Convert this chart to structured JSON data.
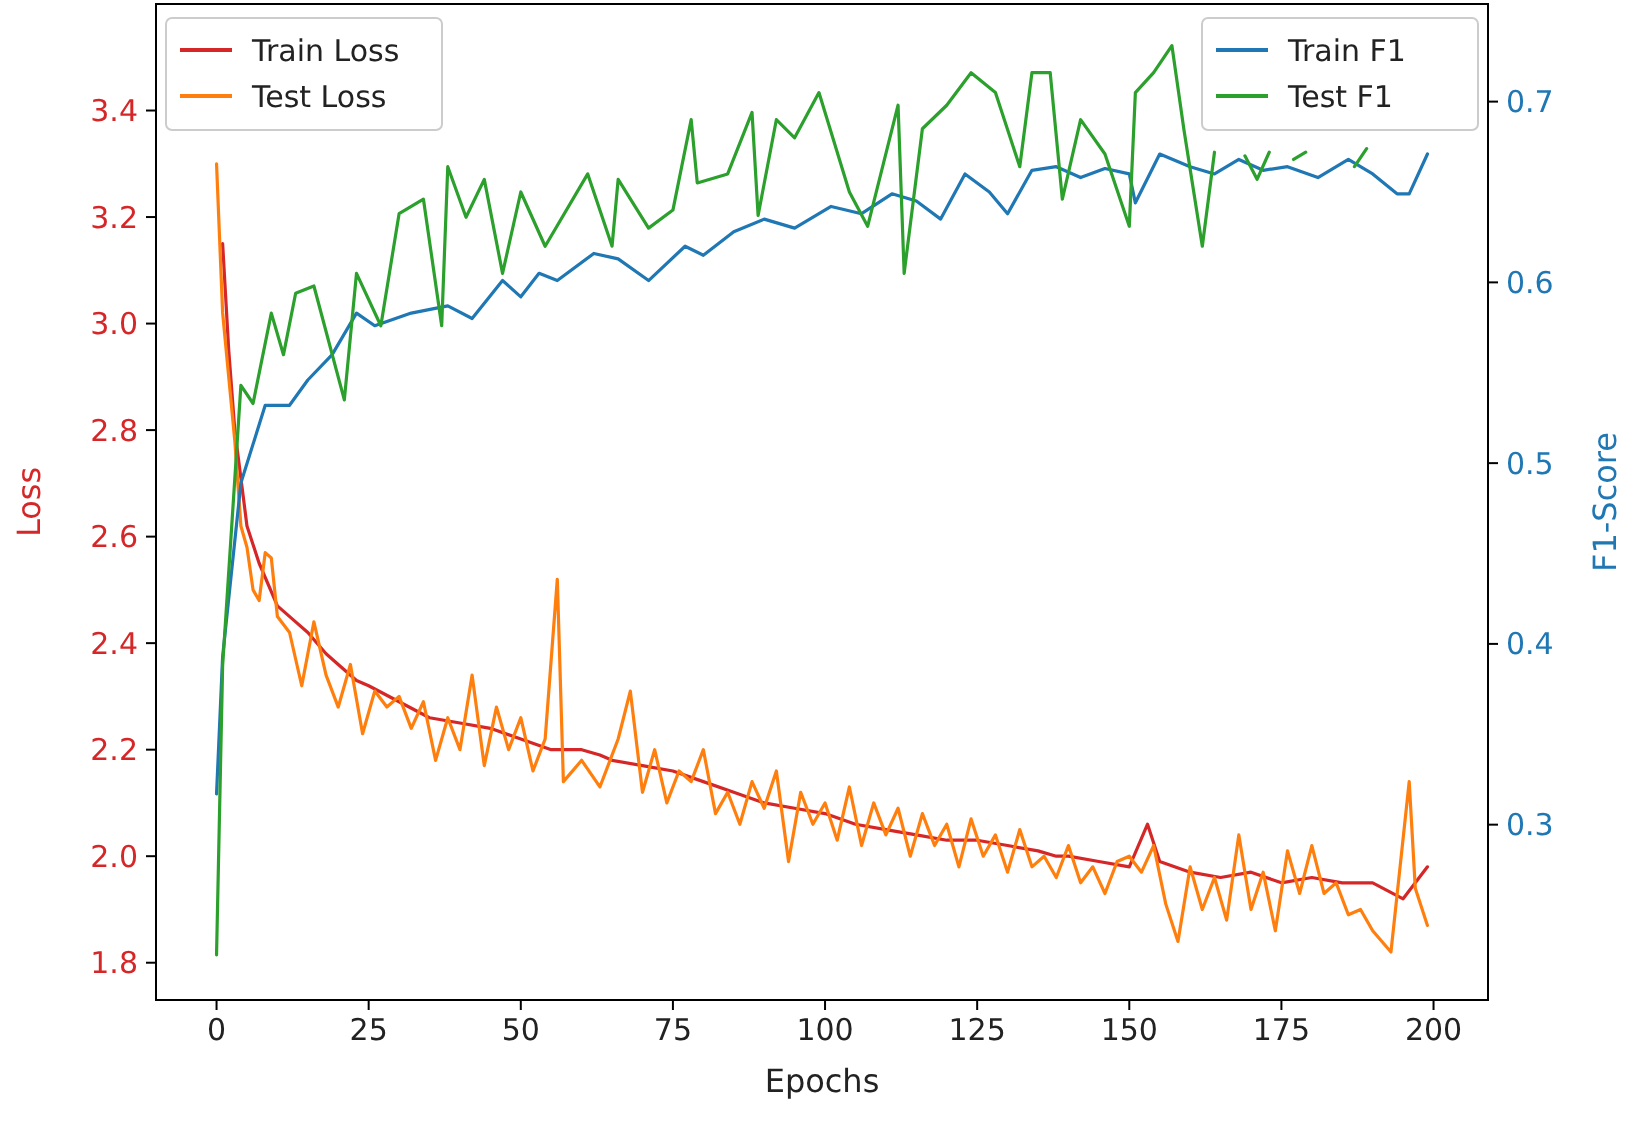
{
  "chart_data": {
    "type": "line",
    "xlabel": "Epochs",
    "ylabel": "Loss",
    "y2label": "F1-Score",
    "xlim": [
      -9.95,
      208.95
    ],
    "xticks": [
      0,
      25,
      50,
      75,
      100,
      125,
      150,
      175,
      200
    ],
    "ylim": [
      1.73,
      3.6
    ],
    "yticks": [
      1.8,
      {
        "value": 2.0,
        "label": "2.0"
      },
      2.2,
      2.4,
      2.6,
      2.8,
      {
        "value": 3.0,
        "label": "3.0"
      },
      3.2,
      3.4
    ],
    "y2lim": [
      0.203,
      0.754
    ],
    "y2ticks": [
      0.3,
      0.4,
      0.5,
      0.6,
      0.7
    ],
    "legend": "top left",
    "grid": false,
    "series": [
      {
        "name": "Train Loss",
        "color": "#d62728",
        "x": [
          1,
          2,
          3,
          5,
          7,
          10,
          13,
          15,
          18,
          20,
          23,
          25,
          30,
          35,
          40,
          45,
          50,
          55,
          60,
          63,
          65,
          70,
          75,
          80,
          85,
          90,
          95,
          100,
          105,
          110,
          115,
          120,
          125,
          130,
          135,
          138,
          140,
          145,
          150,
          153,
          155,
          160,
          165,
          170,
          175,
          180,
          185,
          190,
          195,
          199
        ],
        "values": [
          3.15,
          2.95,
          2.8,
          2.62,
          2.55,
          2.47,
          2.44,
          2.42,
          2.38,
          2.36,
          2.33,
          2.32,
          2.29,
          2.26,
          2.25,
          2.24,
          2.22,
          2.2,
          2.2,
          2.19,
          2.18,
          2.17,
          2.16,
          2.14,
          2.12,
          2.1,
          2.09,
          2.08,
          2.06,
          2.05,
          2.04,
          2.03,
          2.03,
          2.02,
          2.01,
          2.0,
          2.0,
          1.99,
          1.98,
          2.06,
          1.99,
          1.97,
          1.96,
          1.97,
          1.95,
          1.96,
          1.95,
          1.95,
          1.92,
          1.98
        ]
      },
      {
        "name": "Test Loss",
        "color": "#ff7f0e",
        "x": [
          0,
          1,
          2,
          3,
          4,
          5,
          6,
          7,
          8,
          9,
          10,
          12,
          14,
          16,
          18,
          20,
          22,
          24,
          26,
          28,
          30,
          32,
          34,
          36,
          38,
          40,
          42,
          44,
          46,
          48,
          50,
          52,
          54,
          56,
          57,
          60,
          63,
          66,
          68,
          70,
          72,
          74,
          76,
          78,
          80,
          82,
          84,
          86,
          88,
          90,
          92,
          94,
          96,
          98,
          100,
          102,
          104,
          106,
          108,
          110,
          112,
          114,
          116,
          118,
          120,
          122,
          124,
          126,
          128,
          130,
          132,
          134,
          136,
          138,
          140,
          142,
          144,
          146,
          148,
          150,
          152,
          154,
          156,
          158,
          160,
          162,
          164,
          166,
          168,
          170,
          172,
          174,
          176,
          178,
          180,
          182,
          184,
          186,
          188,
          190,
          193,
          196,
          197,
          199
        ],
        "values": [
          3.3,
          3.02,
          2.9,
          2.78,
          2.62,
          2.58,
          2.5,
          2.48,
          2.57,
          2.56,
          2.45,
          2.42,
          2.32,
          2.44,
          2.34,
          2.28,
          2.36,
          2.23,
          2.31,
          2.28,
          2.3,
          2.24,
          2.29,
          2.18,
          2.26,
          2.2,
          2.34,
          2.17,
          2.28,
          2.2,
          2.26,
          2.16,
          2.22,
          2.52,
          2.14,
          2.18,
          2.13,
          2.22,
          2.31,
          2.12,
          2.2,
          2.1,
          2.16,
          2.14,
          2.2,
          2.08,
          2.12,
          2.06,
          2.14,
          2.09,
          2.16,
          1.99,
          2.12,
          2.06,
          2.1,
          2.03,
          2.13,
          2.02,
          2.1,
          2.04,
          2.09,
          2.0,
          2.08,
          2.02,
          2.06,
          1.98,
          2.07,
          2.0,
          2.04,
          1.97,
          2.05,
          1.98,
          2.0,
          1.96,
          2.02,
          1.95,
          1.98,
          1.93,
          1.99,
          2.0,
          1.97,
          2.02,
          1.91,
          1.84,
          1.98,
          1.9,
          1.96,
          1.88,
          2.04,
          1.9,
          1.97,
          1.86,
          2.01,
          1.93,
          2.02,
          1.93,
          1.95,
          1.89,
          1.9,
          1.86,
          1.82,
          2.14,
          1.94,
          1.87
        ]
      },
      {
        "name": "Train F1",
        "color": "#1f77b4",
        "axis": "y2",
        "x": [
          0,
          1,
          4,
          8,
          12,
          15,
          19,
          23,
          26,
          32,
          38,
          42,
          47,
          50,
          53,
          56,
          62,
          66,
          71,
          77,
          80,
          85,
          90,
          95,
          101,
          106,
          111,
          115,
          119,
          123,
          127,
          130,
          134,
          138,
          142,
          146,
          150,
          151,
          155,
          160,
          164,
          168,
          172,
          176,
          181,
          186,
          190,
          194,
          196,
          199
        ],
        "values": [
          0.317,
          0.393,
          0.489,
          0.532,
          0.532,
          0.546,
          0.56,
          0.583,
          0.576,
          0.583,
          0.587,
          0.58,
          0.601,
          0.592,
          0.605,
          0.601,
          0.616,
          0.613,
          0.601,
          0.62,
          0.615,
          0.628,
          0.635,
          0.63,
          0.642,
          0.638,
          0.649,
          0.645,
          0.635,
          0.66,
          0.65,
          0.638,
          0.662,
          0.664,
          0.658,
          0.663,
          0.66,
          0.644,
          0.671,
          0.664,
          0.66,
          0.668,
          0.662,
          0.664,
          0.658,
          0.668,
          0.66,
          0.649,
          0.649,
          0.671
        ]
      },
      {
        "name": "Test F1",
        "color": "#2ca02c",
        "axis": "y2",
        "x": [
          0,
          1,
          4,
          6,
          9,
          11,
          13,
          16,
          21,
          23,
          27,
          30,
          34,
          37,
          38,
          41,
          44,
          47,
          50,
          54,
          61,
          65,
          66,
          71,
          75,
          78,
          79,
          84,
          88,
          89,
          92,
          95,
          99,
          104,
          107,
          112,
          113,
          116,
          120,
          124,
          128,
          132,
          134,
          137,
          139,
          142,
          146,
          150,
          151,
          154,
          157,
          159,
          162,
          164,
          166,
          169,
          171,
          173,
          175,
          177,
          179,
          185,
          187,
          189
        ],
        "values": [
          0.228,
          0.388,
          0.543,
          0.533,
          0.583,
          0.56,
          0.594,
          0.598,
          0.535,
          0.605,
          0.576,
          0.638,
          0.646,
          0.576,
          0.664,
          0.636,
          0.657,
          0.605,
          0.65,
          0.62,
          0.66,
          0.62,
          0.657,
          0.63,
          0.64,
          0.69,
          0.655,
          0.66,
          0.694,
          0.637,
          0.69,
          0.68,
          0.705,
          0.65,
          0.631,
          0.698,
          0.605,
          0.685,
          0.698,
          0.716,
          0.705,
          0.664,
          0.716,
          0.716,
          0.646,
          0.69,
          0.671,
          0.631,
          0.705,
          0.716,
          0.731,
          0.684,
          0.62,
          0.672,
          null,
          0.67,
          0.657,
          0.672,
          null,
          0.668,
          0.672,
          null,
          0.664,
          0.674
        ]
      }
    ]
  }
}
